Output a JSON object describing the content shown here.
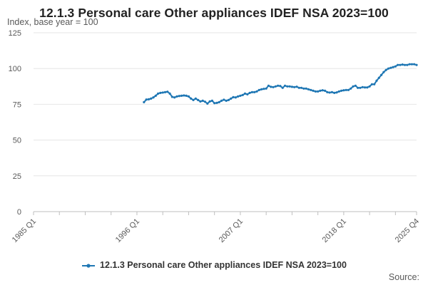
{
  "title": "12.1.3 Personal care Other appliances IDEF NSA 2023=100",
  "subtitle": "Index, base year = 100",
  "source_label": "Source:",
  "chart_data": {
    "type": "line",
    "ylim": [
      0,
      125
    ],
    "yticks": [
      0,
      25,
      50,
      75,
      100,
      125
    ],
    "x_categories": [
      "1985 Q1",
      "1996 Q1",
      "2007 Q1",
      "2018 Q1",
      "2025 Q4"
    ],
    "x_ticks_quarter_index": [
      0,
      44,
      88,
      132,
      163
    ],
    "grid": true,
    "legend_position": "bottom",
    "series": [
      {
        "name": "12.1.3 Personal care Other appliances IDEF NSA 2023=100",
        "color": "#1f77b4",
        "quarter_index_values": [
          [
            47,
            76.5
          ],
          [
            48,
            78.3
          ],
          [
            49,
            78.5
          ],
          [
            50,
            79.0
          ],
          [
            51,
            79.8
          ],
          [
            52,
            81.0
          ],
          [
            53,
            82.5
          ],
          [
            54,
            83.0
          ],
          [
            55,
            83.2
          ],
          [
            56,
            83.5
          ],
          [
            57,
            83.8
          ],
          [
            58,
            82.5
          ],
          [
            59,
            80.2
          ],
          [
            60,
            79.8
          ],
          [
            61,
            80.5
          ],
          [
            62,
            80.8
          ],
          [
            63,
            81.0
          ],
          [
            64,
            81.2
          ],
          [
            65,
            81.0
          ],
          [
            66,
            80.5
          ],
          [
            67,
            79.0
          ],
          [
            68,
            78.0
          ],
          [
            69,
            79.0
          ],
          [
            70,
            78.0
          ],
          [
            71,
            77.0
          ],
          [
            72,
            77.5
          ],
          [
            73,
            76.8
          ],
          [
            74,
            75.5
          ],
          [
            75,
            77.0
          ],
          [
            76,
            77.5
          ],
          [
            77,
            75.8
          ],
          [
            78,
            76.0
          ],
          [
            79,
            76.5
          ],
          [
            80,
            77.5
          ],
          [
            81,
            78.2
          ],
          [
            82,
            77.5
          ],
          [
            83,
            78.0
          ],
          [
            84,
            79.0
          ],
          [
            85,
            80.0
          ],
          [
            86,
            79.8
          ],
          [
            87,
            80.5
          ],
          [
            88,
            81.0
          ],
          [
            89,
            81.5
          ],
          [
            90,
            82.5
          ],
          [
            91,
            82.0
          ],
          [
            92,
            83.0
          ],
          [
            93,
            83.5
          ],
          [
            94,
            83.5
          ],
          [
            95,
            84.0
          ],
          [
            96,
            85.0
          ],
          [
            97,
            85.5
          ],
          [
            98,
            85.8
          ],
          [
            99,
            86.0
          ],
          [
            100,
            88.0
          ],
          [
            101,
            87.2
          ],
          [
            102,
            87.0
          ],
          [
            103,
            87.5
          ],
          [
            104,
            88.0
          ],
          [
            105,
            87.8
          ],
          [
            106,
            86.5
          ],
          [
            107,
            88.0
          ],
          [
            108,
            87.5
          ],
          [
            109,
            87.5
          ],
          [
            110,
            87.2
          ],
          [
            111,
            87.0
          ],
          [
            112,
            87.3
          ],
          [
            113,
            86.5
          ],
          [
            114,
            86.5
          ],
          [
            115,
            86.0
          ],
          [
            116,
            86.0
          ],
          [
            117,
            85.5
          ],
          [
            118,
            85.0
          ],
          [
            119,
            84.5
          ],
          [
            120,
            84.0
          ],
          [
            121,
            84.0
          ],
          [
            122,
            84.5
          ],
          [
            123,
            84.8
          ],
          [
            124,
            84.5
          ],
          [
            125,
            83.5
          ],
          [
            126,
            83.2
          ],
          [
            127,
            83.5
          ],
          [
            128,
            83.0
          ],
          [
            129,
            83.3
          ],
          [
            130,
            84.0
          ],
          [
            131,
            84.5
          ],
          [
            132,
            84.8
          ],
          [
            133,
            85.0
          ],
          [
            134,
            85.0
          ],
          [
            135,
            86.0
          ],
          [
            136,
            87.5
          ],
          [
            137,
            88.0
          ],
          [
            138,
            86.5
          ],
          [
            139,
            86.5
          ],
          [
            140,
            87.0
          ],
          [
            141,
            86.8
          ],
          [
            142,
            86.8
          ],
          [
            143,
            87.5
          ],
          [
            144,
            89.0
          ],
          [
            145,
            89.0
          ],
          [
            146,
            91.5
          ],
          [
            147,
            93.5
          ],
          [
            148,
            95.5
          ],
          [
            149,
            97.5
          ],
          [
            150,
            99.0
          ],
          [
            151,
            100.0
          ],
          [
            152,
            100.5
          ],
          [
            153,
            101.0
          ],
          [
            154,
            101.5
          ],
          [
            155,
            102.5
          ],
          [
            156,
            102.5
          ],
          [
            157,
            102.8
          ],
          [
            158,
            102.5
          ],
          [
            159,
            102.5
          ],
          [
            160,
            103.0
          ],
          [
            161,
            103.0
          ],
          [
            162,
            103.0
          ],
          [
            163,
            102.5
          ]
        ]
      }
    ]
  }
}
